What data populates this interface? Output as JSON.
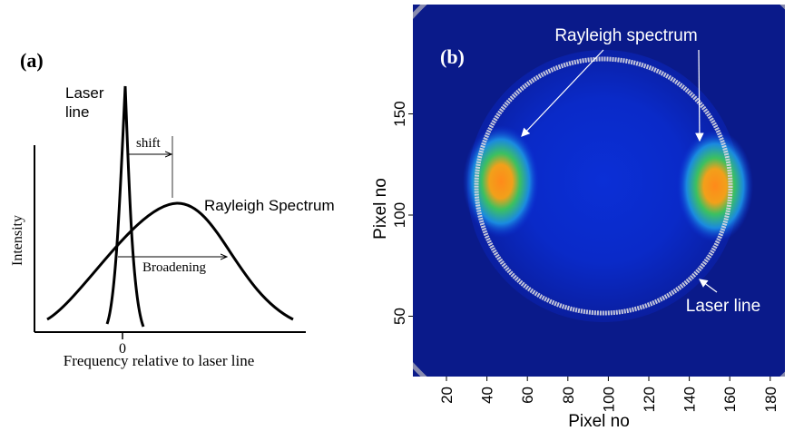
{
  "panel_a": {
    "label": "(a)",
    "laser_label": [
      "Laser",
      "line"
    ],
    "shift": "shift",
    "rayleigh": "Rayleigh Spectrum",
    "broadening": "Broadening",
    "y_label": "Intensity",
    "x_label": "Frequency relative to laser line",
    "zero": "0"
  },
  "panel_b": {
    "label": "(b)",
    "rayleigh": "Rayleigh spectrum",
    "laser": "Laser line",
    "x_label": "Pixel no",
    "y_label": "Pixel no",
    "xticks": [
      20,
      40,
      60,
      80,
      100,
      120,
      140,
      160,
      180
    ],
    "yticks": [
      50,
      100,
      150
    ]
  }
}
